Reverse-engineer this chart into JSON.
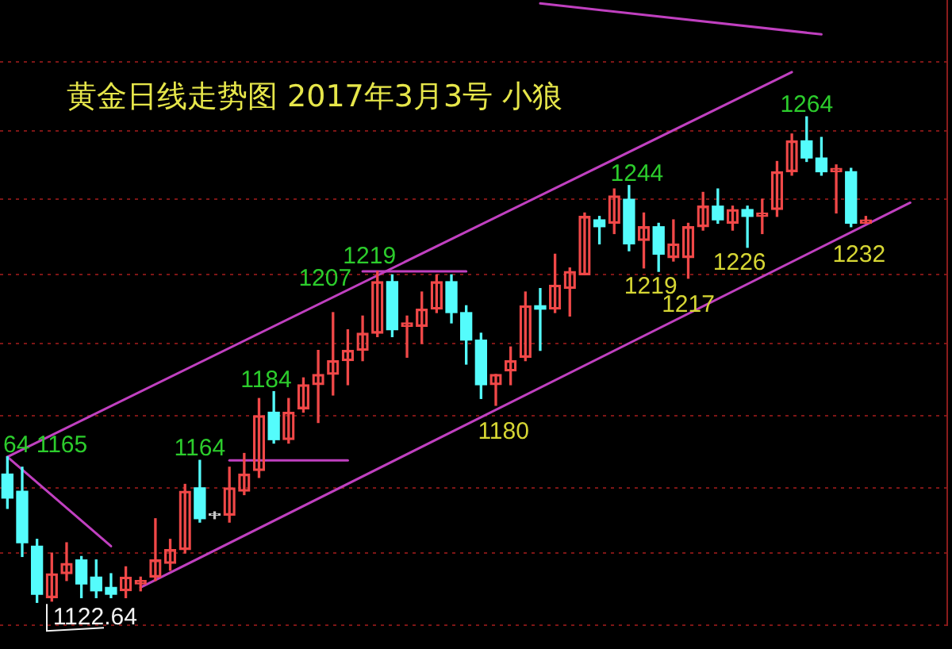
{
  "chart_data": {
    "type": "candlestick",
    "title": "黄金日线走势图 2017年3月3号 小狼",
    "categories": [
      null,
      null,
      null,
      null,
      null,
      null,
      null,
      null,
      null,
      null,
      null,
      null,
      null,
      null,
      null,
      null,
      null,
      null,
      null,
      null,
      null,
      null,
      null,
      null,
      null,
      null,
      null,
      null,
      null,
      null,
      null,
      null,
      null,
      null,
      null,
      null,
      null,
      null,
      null,
      null,
      null,
      null,
      null,
      null,
      null,
      null,
      null,
      null,
      null,
      null,
      null,
      null,
      null,
      null,
      null,
      null,
      null,
      null,
      null,
      null,
      null,
      null,
      null,
      null
    ],
    "ohlc": [
      [
        1160,
        1165,
        1150,
        1153
      ],
      [
        1155,
        1162,
        1136,
        1140
      ],
      [
        1139,
        1141,
        1122.64,
        1125
      ],
      [
        1124,
        1137,
        1123,
        1131
      ],
      [
        1131,
        1140,
        1129,
        1134
      ],
      [
        1135,
        1136,
        1124,
        1128
      ],
      [
        1130,
        1135,
        1124,
        1126
      ],
      [
        1127,
        1131,
        1124,
        1125
      ],
      [
        1126,
        1133,
        1124,
        1130
      ],
      [
        1128,
        1130,
        1126,
        1129
      ],
      [
        1130,
        1147,
        1129,
        1135
      ],
      [
        1134,
        1141,
        1132,
        1138
      ],
      [
        1138,
        1157,
        1137,
        1155
      ],
      [
        1156,
        1164,
        1146,
        1147
      ],
      [
        1148,
        1149,
        1147,
        1148
      ],
      [
        1148,
        1162,
        1146,
        1156
      ],
      [
        1155,
        1166,
        1154,
        1160
      ],
      [
        1161,
        1182,
        1159,
        1177
      ],
      [
        1178,
        1184,
        1169,
        1170
      ],
      [
        1170,
        1182,
        1169,
        1178
      ],
      [
        1179,
        1188,
        1178,
        1186
      ],
      [
        1186,
        1196,
        1175,
        1189
      ],
      [
        1189,
        1207,
        1183,
        1193
      ],
      [
        1193,
        1202,
        1186,
        1196
      ],
      [
        1196,
        1206,
        1193,
        1201
      ],
      [
        1201,
        1219,
        1200,
        1216
      ],
      [
        1216,
        1218,
        1200,
        1202
      ],
      [
        1203,
        1206,
        1194,
        1204
      ],
      [
        1203,
        1213,
        1198,
        1208
      ],
      [
        1208,
        1218,
        1207,
        1216
      ],
      [
        1216,
        1218,
        1204,
        1207
      ],
      [
        1207,
        1209,
        1192,
        1199
      ],
      [
        1199,
        1201,
        1182,
        1186
      ],
      [
        1186,
        1189,
        1180,
        1189
      ],
      [
        1190,
        1197,
        1186,
        1193
      ],
      [
        1194,
        1213,
        1193,
        1209
      ],
      [
        1209,
        1214,
        1196,
        1208
      ],
      [
        1208,
        1224,
        1207,
        1215
      ],
      [
        1214,
        1220,
        1206,
        1219
      ],
      [
        1218,
        1236,
        1218,
        1235
      ],
      [
        1234,
        1235,
        1227,
        1232
      ],
      [
        1233,
        1243,
        1230,
        1241
      ],
      [
        1240,
        1244,
        1225,
        1227
      ],
      [
        1228,
        1236,
        1220,
        1232
      ],
      [
        1232,
        1233,
        1219,
        1224
      ],
      [
        1223,
        1234,
        1222,
        1227
      ],
      [
        1223,
        1233,
        1217,
        1232
      ],
      [
        1232,
        1242,
        1231,
        1238
      ],
      [
        1238,
        1243,
        1233,
        1234
      ],
      [
        1233,
        1238,
        1231,
        1237
      ],
      [
        1237,
        1238,
        1226,
        1235
      ],
      [
        1235,
        1240,
        1230,
        1236
      ],
      [
        1237,
        1251,
        1235,
        1248
      ],
      [
        1248,
        1259,
        1247,
        1257
      ],
      [
        1257,
        1264,
        1251,
        1252
      ],
      [
        1252,
        1258,
        1247,
        1248
      ],
      [
        1248,
        1250,
        1236,
        1249
      ],
      [
        1248,
        1249,
        1232,
        1233
      ],
      [
        1233,
        1235,
        1233,
        1234
      ],
      null,
      null,
      null,
      null,
      null
    ],
    "colors": [
      "#54fcfc",
      "#54fcfc",
      "#54fcfc",
      "#f04848",
      "#f04848",
      "#54fcfc",
      "#54fcfc",
      "#54fcfc",
      "#f04848",
      "#f04848",
      "#f04848",
      "#f04848",
      "#f04848",
      "#54fcfc",
      "#c8c8c8",
      "#f04848",
      "#f04848",
      "#f04848",
      "#54fcfc",
      "#f04848",
      "#f04848",
      "#f04848",
      "#f04848",
      "#f04848",
      "#f04848",
      "#f04848",
      "#54fcfc",
      "#f04848",
      "#f04848",
      "#f04848",
      "#54fcfc",
      "#54fcfc",
      "#54fcfc",
      "#f04848",
      "#f04848",
      "#f04848",
      "#54fcfc",
      "#f04848",
      "#f04848",
      "#f04848",
      "#54fcfc",
      "#f04848",
      "#54fcfc",
      "#f04848",
      "#54fcfc",
      "#f04848",
      "#f04848",
      "#f04848",
      "#54fcfc",
      "#f04848",
      "#54fcfc",
      "#f04848",
      "#f04848",
      "#f04848",
      "#54fcfc",
      "#54fcfc",
      "#f04848",
      "#54fcfc",
      "#f04848",
      null,
      null,
      null,
      null,
      null
    ],
    "series": [
      {
        "type": "line",
        "color": "#c040c0",
        "values": [
          1165,
          null,
          null,
          null,
          null,
          null,
          null,
          null,
          null,
          null,
          null,
          null,
          null,
          null,
          null,
          null,
          null,
          null,
          null,
          null,
          null,
          null,
          null,
          null,
          null,
          null,
          null,
          null,
          null,
          null,
          null,
          null,
          null,
          null,
          null,
          null,
          null,
          null,
          null,
          null,
          null,
          null,
          null,
          null,
          null,
          null,
          null,
          null,
          null,
          null,
          null,
          null,
          null,
          1277,
          null,
          null,
          null,
          null,
          null,
          null,
          null,
          null,
          null,
          null
        ]
      },
      {
        "type": "line",
        "color": "#c040c0",
        "values": [
          null,
          null,
          null,
          null,
          null,
          null,
          null,
          null,
          null,
          1127,
          null,
          null,
          null,
          null,
          null,
          null,
          null,
          null,
          null,
          null,
          null,
          null,
          null,
          null,
          null,
          null,
          null,
          null,
          null,
          null,
          null,
          null,
          null,
          null,
          null,
          null,
          null,
          null,
          null,
          null,
          null,
          null,
          null,
          null,
          null,
          null,
          null,
          null,
          null,
          null,
          null,
          null,
          null,
          null,
          null,
          null,
          null,
          null,
          null,
          null,
          null,
          1239,
          null,
          null
        ]
      },
      {
        "type": "line",
        "color": "#c040c0",
        "values": [
          1165,
          null,
          null,
          null,
          null,
          null,
          null,
          1139,
          null,
          null,
          null,
          null,
          null,
          null,
          null,
          null,
          null,
          null,
          null,
          null,
          null,
          null,
          null,
          null,
          null,
          null,
          null,
          null,
          null,
          null,
          null,
          null,
          null,
          null,
          null,
          null,
          null,
          null,
          null,
          null,
          null,
          null,
          null,
          null,
          null,
          null,
          null,
          null,
          null,
          null,
          null,
          null,
          null,
          null,
          null,
          null,
          null,
          null,
          null,
          null,
          null,
          null,
          null,
          null
        ]
      },
      {
        "type": "line",
        "color": "#c040c0",
        "values": [
          null,
          null,
          null,
          null,
          null,
          null,
          null,
          null,
          null,
          null,
          null,
          null,
          null,
          null,
          null,
          null,
          null,
          null,
          null,
          null,
          null,
          null,
          null,
          null,
          null,
          null,
          null,
          null,
          null,
          null,
          null,
          null,
          null,
          null,
          null,
          null,
          1297,
          null,
          null,
          null,
          null,
          null,
          null,
          null,
          null,
          null,
          null,
          null,
          null,
          null,
          null,
          null,
          null,
          null,
          null,
          1288,
          null,
          null,
          null,
          null,
          null,
          null,
          null,
          null
        ]
      },
      {
        "type": "line",
        "color": "#c040c0",
        "values": [
          null,
          null,
          null,
          null,
          null,
          null,
          null,
          null,
          null,
          null,
          null,
          null,
          null,
          null,
          null,
          null,
          null,
          null,
          null,
          null,
          null,
          null,
          null,
          null,
          1219,
          null,
          null,
          null,
          null,
          null,
          null,
          1219,
          null,
          null,
          null,
          null,
          null,
          null,
          null,
          null,
          null,
          null,
          null,
          null,
          null,
          null,
          null,
          null,
          null,
          null,
          null,
          null,
          null,
          null,
          null,
          null,
          null,
          null,
          null,
          null,
          null,
          null,
          null,
          null
        ]
      },
      {
        "type": "line",
        "color": "#c040c0",
        "values": [
          null,
          null,
          null,
          null,
          null,
          null,
          null,
          null,
          null,
          null,
          null,
          null,
          null,
          null,
          null,
          1164,
          null,
          null,
          null,
          null,
          null,
          null,
          null,
          1164,
          null,
          null,
          null,
          null,
          null,
          null,
          null,
          null,
          null,
          null,
          null,
          null,
          null,
          null,
          null,
          null,
          null,
          null,
          null,
          null,
          null,
          null,
          null,
          null,
          null,
          null,
          null,
          null,
          null,
          null,
          null,
          null,
          null,
          null,
          null,
          null,
          null,
          null,
          null,
          null
        ]
      }
    ],
    "ylim": [
      1116,
      1298
    ],
    "yticks": [
      {
        "value": 1280,
        "label": null
      },
      {
        "value": 1260,
        "label": null
      },
      {
        "value": 1240,
        "label": null
      },
      {
        "value": 1218,
        "label": null
      },
      {
        "value": 1198,
        "label": null
      },
      {
        "value": 1177,
        "label": null
      },
      {
        "value": 1156,
        "label": null
      },
      {
        "value": 1137,
        "label": null
      },
      {
        "value": 1116,
        "label": null
      }
    ],
    "grid": "y",
    "tick_labels": false,
    "annotations": [
      "64 1165",
      {
        "text": "1122.64",
        "y": 1122.64
      },
      {
        "text": "1164",
        "y": 1164
      },
      {
        "text": "1184",
        "y": 1184
      },
      {
        "text": "1207",
        "y": 1207
      },
      {
        "text": "1219",
        "y": 1219
      },
      {
        "text": "1180",
        "y": 1180
      },
      {
        "text": "1244",
        "y": 1244
      },
      {
        "text": "1219",
        "y": 1219
      },
      {
        "text": "1217",
        "y": 1217
      },
      {
        "text": "1226",
        "y": 1226
      },
      {
        "text": "1264",
        "y": 1264
      },
      {
        "text": "1232",
        "y": 1232
      }
    ]
  }
}
